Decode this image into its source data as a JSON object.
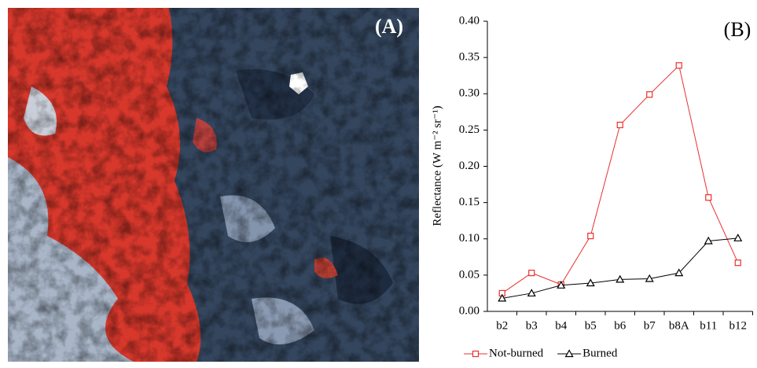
{
  "image_panel": {
    "label": "(A)"
  },
  "chart_data": {
    "type": "line",
    "annotation": "(B)",
    "y_label": "Reflectance  (W m⁻² sr⁻¹)",
    "categories": [
      "b2",
      "b3",
      "b4",
      "b5",
      "b6",
      "b7",
      "b8A",
      "b11",
      "b12"
    ],
    "series": [
      {
        "name": "Not-burned",
        "color": "#e8312f",
        "marker": "square",
        "values": [
          0.025,
          0.053,
          0.037,
          0.104,
          0.257,
          0.299,
          0.339,
          0.157,
          0.067
        ]
      },
      {
        "name": "Burned",
        "color": "#000000",
        "marker": "triangle",
        "values": [
          0.018,
          0.025,
          0.036,
          0.039,
          0.044,
          0.045,
          0.053,
          0.097,
          0.101
        ]
      }
    ],
    "ylim": [
      0,
      0.4
    ],
    "yticks": [
      {
        "value": 0,
        "label": "0.00"
      },
      {
        "value": 0.05,
        "label": "0.05"
      },
      {
        "value": 0.1,
        "label": "0.10"
      },
      {
        "value": 0.15,
        "label": "0.15"
      },
      {
        "value": 0.2,
        "label": "0.20"
      },
      {
        "value": 0.25,
        "label": "0.25"
      },
      {
        "value": 0.3,
        "label": "0.30"
      },
      {
        "value": 0.35,
        "label": "0.35"
      },
      {
        "value": 0.4,
        "label": "0.40"
      }
    ],
    "grid": false,
    "legend": "bottom"
  }
}
